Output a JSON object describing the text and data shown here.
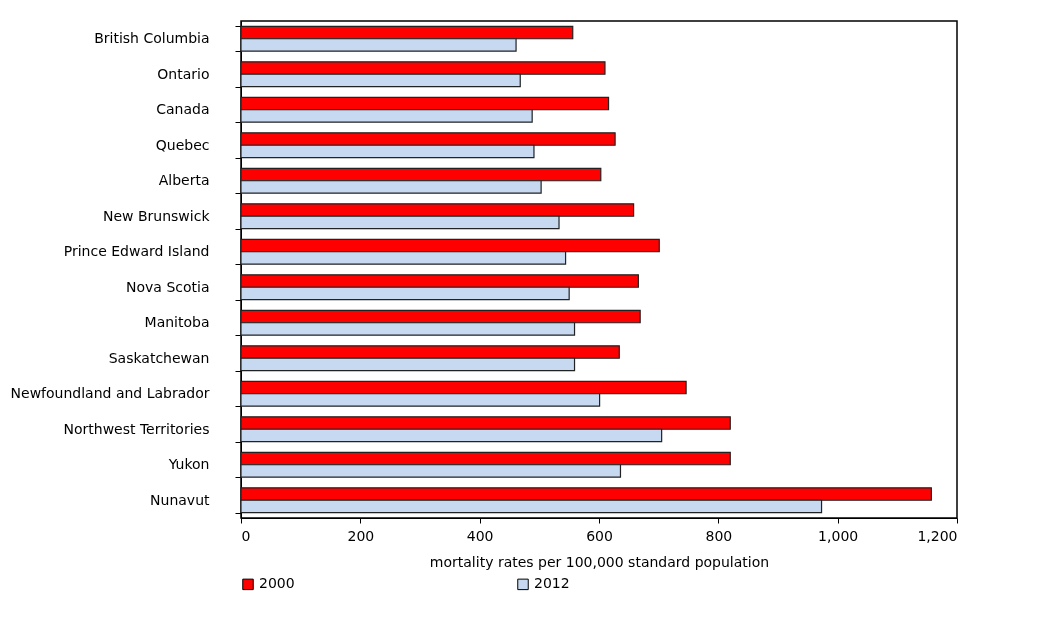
{
  "chart_data": {
    "type": "bar",
    "orientation": "horizontal",
    "xlabel": "mortality rates per 100,000 standard population",
    "categories": [
      "British Columbia",
      "Ontario",
      "Canada",
      "Quebec",
      "Alberta",
      "New Brunswick",
      "Prince Edward Island",
      "Nova Scotia",
      "Manitoba",
      "Saskatchewan",
      "Newfoundland and Labrador",
      "Northwest Territories",
      "Yukon",
      "Nunavut"
    ],
    "series": [
      {
        "name": "2000",
        "color": "#ff0000",
        "values": [
          556,
          610,
          616,
          627,
          603,
          658,
          701,
          666,
          669,
          634,
          746,
          820,
          820,
          1157
        ]
      },
      {
        "name": "2012",
        "color": "#c6d9f0",
        "values": [
          461,
          468,
          488,
          491,
          503,
          533,
          544,
          550,
          559,
          559,
          601,
          705,
          636,
          973
        ]
      }
    ],
    "xlim": [
      0,
      1200
    ],
    "xticks": [
      0,
      200,
      400,
      600,
      800,
      {
        "value": 1000,
        "label": "1,000"
      },
      {
        "value": 1200,
        "label": "1,200"
      }
    ],
    "grid": false,
    "legend": "bottom"
  }
}
